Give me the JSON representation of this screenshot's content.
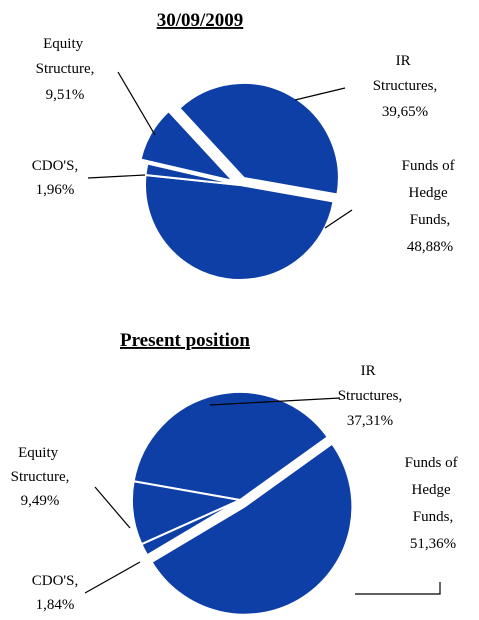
{
  "chart_data": [
    {
      "type": "pie",
      "title": "30/09/2009",
      "categories": [
        "IR Structures,",
        "Funds of Hedge Funds,",
        "CDO'S,",
        "Equity Structure,"
      ],
      "values": [
        39.65,
        48.88,
        1.96,
        9.51
      ],
      "value_labels": [
        "39,65%",
        "48,88%",
        "1,96%",
        "9,51%"
      ],
      "color": "#0d3fa6"
    },
    {
      "type": "pie",
      "title": "Present position",
      "categories": [
        "IR Structures,",
        "Funds of Hedge Funds,",
        "CDO'S,",
        "Equity Structure,"
      ],
      "values": [
        37.31,
        51.36,
        1.84,
        9.49
      ],
      "value_labels": [
        "37,31%",
        "51,36%",
        "1,84%",
        "9,49%"
      ],
      "color": "#0d3fa6"
    }
  ]
}
